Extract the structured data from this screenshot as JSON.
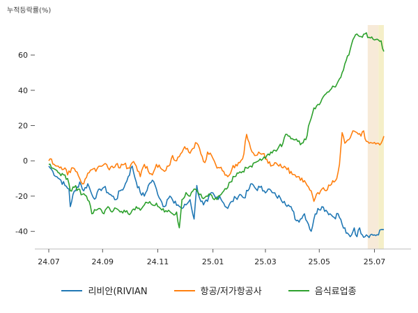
{
  "chart_data": {
    "type": "line",
    "ylabel": "누적등락률(%)",
    "ylim": [
      -50,
      77
    ],
    "yticks": [
      -40,
      -20,
      0,
      20,
      40,
      60
    ],
    "xticks": [
      {
        "label": "24.07",
        "i": 0
      },
      {
        "label": "24.09",
        "i": 40
      },
      {
        "label": "24.11",
        "i": 81
      },
      {
        "label": "25.01",
        "i": 122
      },
      {
        "label": "25.03",
        "i": 161
      },
      {
        "label": "25.05",
        "i": 201
      },
      {
        "label": "25.07",
        "i": 242
      }
    ],
    "x_count": 250,
    "highlights": [
      {
        "from": 237,
        "to": 245,
        "color": "#f7ead8"
      },
      {
        "from": 245,
        "to": 249,
        "color": "#f5efc8"
      }
    ],
    "series": [
      {
        "name": "리비안(RIVIAN",
        "color": "#1f77b4",
        "anchors": [
          [
            0,
            -3
          ],
          [
            3,
            -6
          ],
          [
            6,
            -9
          ],
          [
            9,
            -11
          ],
          [
            12,
            -14
          ],
          [
            15,
            -16
          ],
          [
            16,
            -26
          ],
          [
            18,
            -19
          ],
          [
            20,
            -17
          ],
          [
            23,
            -12
          ],
          [
            26,
            -17
          ],
          [
            29,
            -13
          ],
          [
            32,
            -19
          ],
          [
            35,
            -21
          ],
          [
            38,
            -16
          ],
          [
            41,
            -15
          ],
          [
            44,
            -18
          ],
          [
            47,
            -20
          ],
          [
            50,
            -22
          ],
          [
            53,
            -17
          ],
          [
            56,
            -15
          ],
          [
            59,
            -9
          ],
          [
            62,
            -3
          ],
          [
            65,
            -12
          ],
          [
            68,
            -18
          ],
          [
            71,
            -20
          ],
          [
            74,
            -14
          ],
          [
            77,
            -11
          ],
          [
            80,
            -16
          ],
          [
            83,
            -22
          ],
          [
            86,
            -26
          ],
          [
            88,
            -22
          ],
          [
            90,
            -20
          ],
          [
            93,
            -24
          ],
          [
            96,
            -25
          ],
          [
            99,
            -27
          ],
          [
            102,
            -25
          ],
          [
            105,
            -22
          ],
          [
            108,
            -33
          ],
          [
            110,
            -14
          ],
          [
            112,
            -21
          ],
          [
            115,
            -25
          ],
          [
            118,
            -23
          ],
          [
            121,
            -18
          ],
          [
            124,
            -21
          ],
          [
            127,
            -20
          ],
          [
            130,
            -24
          ],
          [
            133,
            -27
          ],
          [
            136,
            -23
          ],
          [
            139,
            -21
          ],
          [
            142,
            -19
          ],
          [
            145,
            -21
          ],
          [
            148,
            -17
          ],
          [
            151,
            -13
          ],
          [
            154,
            -16
          ],
          [
            157,
            -15
          ],
          [
            160,
            -17
          ],
          [
            163,
            -16
          ],
          [
            166,
            -18
          ],
          [
            169,
            -20
          ],
          [
            172,
            -21
          ],
          [
            175,
            -23
          ],
          [
            178,
            -25
          ],
          [
            181,
            -28
          ],
          [
            184,
            -34
          ],
          [
            187,
            -33
          ],
          [
            190,
            -30
          ],
          [
            193,
            -36
          ],
          [
            195,
            -40
          ],
          [
            197,
            -33
          ],
          [
            200,
            -27
          ],
          [
            203,
            -26
          ],
          [
            206,
            -28
          ],
          [
            209,
            -30
          ],
          [
            212,
            -32
          ],
          [
            215,
            -30
          ],
          [
            218,
            -36
          ],
          [
            221,
            -41
          ],
          [
            224,
            -43
          ],
          [
            227,
            -38
          ],
          [
            229,
            -43
          ],
          [
            231,
            -38
          ],
          [
            233,
            -42
          ],
          [
            236,
            -42
          ],
          [
            239,
            -42
          ],
          [
            242,
            -42
          ],
          [
            245,
            -42
          ],
          [
            247,
            -39
          ],
          [
            249,
            -39
          ]
        ],
        "wiggle": 1.6
      },
      {
        "name": "항공/저가항공사",
        "color": "#ff7f0e",
        "anchors": [
          [
            0,
            0
          ],
          [
            2,
            1
          ],
          [
            4,
            -2
          ],
          [
            7,
            -3
          ],
          [
            10,
            -5
          ],
          [
            12,
            -4
          ],
          [
            14,
            -8
          ],
          [
            17,
            -4
          ],
          [
            20,
            -6
          ],
          [
            23,
            -10
          ],
          [
            26,
            -13
          ],
          [
            29,
            -7
          ],
          [
            32,
            -5
          ],
          [
            35,
            -6
          ],
          [
            38,
            -3
          ],
          [
            41,
            -2
          ],
          [
            44,
            -4
          ],
          [
            47,
            -3
          ],
          [
            50,
            -2
          ],
          [
            53,
            -4
          ],
          [
            56,
            -2
          ],
          [
            59,
            -4
          ],
          [
            62,
            -1
          ],
          [
            65,
            -3
          ],
          [
            68,
            -9
          ],
          [
            71,
            -2
          ],
          [
            74,
            -6
          ],
          [
            77,
            -8
          ],
          [
            80,
            -2
          ],
          [
            83,
            -4
          ],
          [
            86,
            -6
          ],
          [
            89,
            -3
          ],
          [
            92,
            3
          ],
          [
            95,
            0
          ],
          [
            98,
            4
          ],
          [
            101,
            8
          ],
          [
            104,
            5
          ],
          [
            107,
            7
          ],
          [
            110,
            10
          ],
          [
            113,
            4
          ],
          [
            116,
            -1
          ],
          [
            118,
            5
          ],
          [
            121,
            3
          ],
          [
            124,
            -2
          ],
          [
            127,
            -4
          ],
          [
            130,
            -6
          ],
          [
            133,
            -9
          ],
          [
            136,
            -5
          ],
          [
            139,
            -2
          ],
          [
            142,
            -1
          ],
          [
            145,
            4
          ],
          [
            147,
            15
          ],
          [
            150,
            7
          ],
          [
            153,
            3
          ],
          [
            156,
            5
          ],
          [
            159,
            4
          ],
          [
            162,
            1
          ],
          [
            165,
            -3
          ],
          [
            168,
            -1
          ],
          [
            171,
            -3
          ],
          [
            174,
            -4
          ],
          [
            177,
            -5
          ],
          [
            180,
            -6
          ],
          [
            183,
            -8
          ],
          [
            186,
            -9
          ],
          [
            189,
            -12
          ],
          [
            192,
            -14
          ],
          [
            195,
            -17
          ],
          [
            197,
            -23
          ],
          [
            200,
            -18
          ],
          [
            203,
            -16
          ],
          [
            206,
            -17
          ],
          [
            209,
            -14
          ],
          [
            212,
            -12
          ],
          [
            214,
            -10
          ],
          [
            216,
            -2
          ],
          [
            218,
            16
          ],
          [
            220,
            10
          ],
          [
            223,
            12
          ],
          [
            226,
            17
          ],
          [
            229,
            16
          ],
          [
            232,
            14
          ],
          [
            234,
            17
          ],
          [
            236,
            11
          ],
          [
            238,
            10
          ],
          [
            241,
            10
          ],
          [
            244,
            10
          ],
          [
            247,
            10
          ],
          [
            249,
            14
          ]
        ],
        "wiggle": 1.5
      },
      {
        "name": "음식료업종",
        "color": "#2ca02c",
        "anchors": [
          [
            0,
            -2
          ],
          [
            2,
            -4
          ],
          [
            5,
            -5
          ],
          [
            8,
            -7
          ],
          [
            11,
            -8
          ],
          [
            14,
            -10
          ],
          [
            16,
            -17
          ],
          [
            19,
            -15
          ],
          [
            22,
            -16
          ],
          [
            25,
            -19
          ],
          [
            28,
            -20
          ],
          [
            30,
            -23
          ],
          [
            32,
            -30
          ],
          [
            35,
            -28
          ],
          [
            38,
            -27
          ],
          [
            41,
            -30
          ],
          [
            44,
            -26
          ],
          [
            47,
            -29
          ],
          [
            50,
            -27
          ],
          [
            53,
            -29
          ],
          [
            56,
            -28
          ],
          [
            59,
            -30
          ],
          [
            62,
            -28
          ],
          [
            65,
            -26
          ],
          [
            68,
            -28
          ],
          [
            71,
            -25
          ],
          [
            74,
            -24
          ],
          [
            77,
            -25
          ],
          [
            80,
            -24
          ],
          [
            83,
            -27
          ],
          [
            86,
            -29
          ],
          [
            89,
            -28
          ],
          [
            92,
            -30
          ],
          [
            95,
            -29
          ],
          [
            97,
            -38
          ],
          [
            99,
            -22
          ],
          [
            102,
            -18
          ],
          [
            105,
            -20
          ],
          [
            108,
            -16
          ],
          [
            111,
            -18
          ],
          [
            114,
            -21
          ],
          [
            117,
            -20
          ],
          [
            120,
            -19
          ],
          [
            123,
            -22
          ],
          [
            126,
            -20
          ],
          [
            129,
            -18
          ],
          [
            132,
            -16
          ],
          [
            135,
            -12
          ],
          [
            138,
            -9
          ],
          [
            141,
            -7
          ],
          [
            144,
            -6
          ],
          [
            147,
            -4
          ],
          [
            150,
            -3
          ],
          [
            153,
            -1
          ],
          [
            156,
            0
          ],
          [
            159,
            1
          ],
          [
            162,
            3
          ],
          [
            165,
            5
          ],
          [
            168,
            6
          ],
          [
            171,
            8
          ],
          [
            174,
            10
          ],
          [
            176,
            15
          ],
          [
            179,
            14
          ],
          [
            182,
            12
          ],
          [
            185,
            11
          ],
          [
            188,
            10
          ],
          [
            191,
            12
          ],
          [
            194,
            22
          ],
          [
            197,
            30
          ],
          [
            200,
            32
          ],
          [
            203,
            35
          ],
          [
            206,
            38
          ],
          [
            209,
            40
          ],
          [
            212,
            42
          ],
          [
            215,
            45
          ],
          [
            218,
            50
          ],
          [
            220,
            55
          ],
          [
            223,
            60
          ],
          [
            225,
            66
          ],
          [
            227,
            70
          ],
          [
            230,
            71
          ],
          [
            233,
            70
          ],
          [
            235,
            72
          ],
          [
            238,
            70
          ],
          [
            241,
            69
          ],
          [
            244,
            69
          ],
          [
            247,
            68
          ],
          [
            249,
            62
          ]
        ],
        "wiggle": 1.3
      }
    ]
  }
}
